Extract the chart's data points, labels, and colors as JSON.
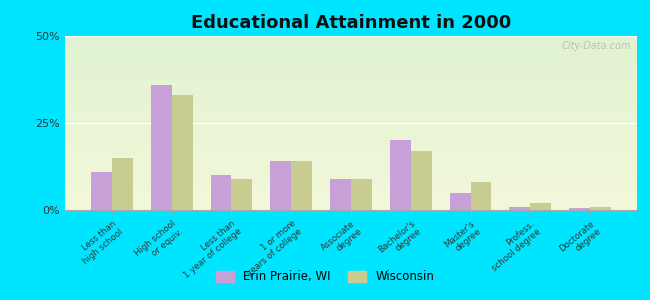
{
  "title": "Educational Attainment in 2000",
  "categories": [
    "Less than\nhigh school",
    "High school\nor equiv.",
    "Less than\n1 year of college",
    "1 or more\nyears of college",
    "Associate\ndegree",
    "Bachelor's\ndegree",
    "Master's\ndegree",
    "Profess.\nschool degree",
    "Doctorate\ndegree"
  ],
  "erin_prairie": [
    11,
    36,
    10,
    14,
    9,
    20,
    5,
    1,
    0.5
  ],
  "wisconsin": [
    15,
    33,
    9,
    14,
    9,
    17,
    8,
    2,
    1
  ],
  "color_erin": "#c8a0d8",
  "color_wisconsin": "#c8cc90",
  "background_outer": "#00e5ff",
  "ylim": [
    0,
    50
  ],
  "yticks": [
    0,
    25,
    50
  ],
  "ytick_labels": [
    "0%",
    "25%",
    "50%"
  ],
  "watermark": "City-Data.com",
  "legend_erin": "Erin Prairie, WI",
  "legend_wisconsin": "Wisconsin"
}
